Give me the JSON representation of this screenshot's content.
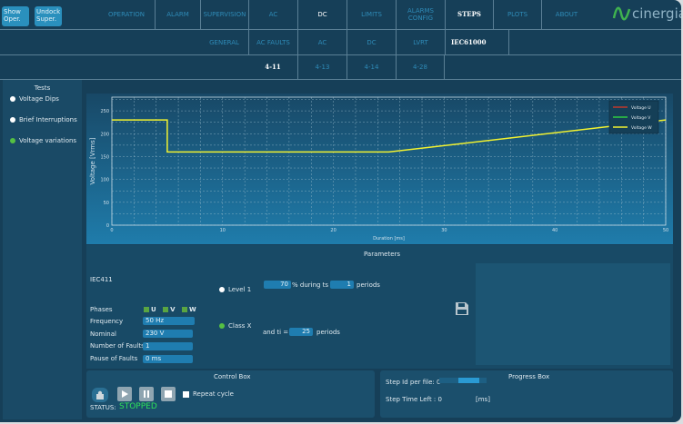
{
  "top_buttons": [
    {
      "label": "Show Oper."
    },
    {
      "label": "Undock Super."
    }
  ],
  "nav1": [
    "OPERATION",
    "ALARM",
    "SUPERVISION",
    "AC",
    "DC",
    "LIMITS",
    "ALARMS CONFIG",
    "STEPS",
    "PLOTS",
    "ABOUT"
  ],
  "nav1_active": "STEPS",
  "nav2": [
    "GENERAL",
    "AC FAULTS",
    "AC",
    "DC",
    "LVRT",
    "IEC61000"
  ],
  "nav3": [
    "4-11",
    "4-13",
    "4-14",
    "4-28"
  ],
  "logo": "cinergia",
  "sidebar": {
    "title": "Tests",
    "items": [
      {
        "label": "Voltage Dips",
        "color": "#ffffff"
      },
      {
        "label": "Brief Interruptions",
        "color": "#ffffff"
      },
      {
        "label": "Voltage variations",
        "color": "#55c043"
      }
    ]
  },
  "chart_data": {
    "type": "line",
    "xlabel": "Duration [ms]",
    "ylabel": "Voltage [Vrms]",
    "xlim": [
      0,
      50
    ],
    "ylim": [
      0,
      280
    ],
    "xticks": [
      0,
      10,
      20,
      30,
      40,
      50
    ],
    "yticks": [
      0,
      50,
      100,
      150,
      200,
      250
    ],
    "grid": true,
    "legend_placement": "top-right",
    "series": [
      {
        "name": "Voltage U",
        "color": "#c0392b",
        "x": [],
        "y": []
      },
      {
        "name": "Voltage V",
        "color": "#2ecc40",
        "x": [],
        "y": []
      },
      {
        "name": "Voltage W",
        "color": "#f2f230",
        "x": [
          0,
          5,
          5,
          25,
          50
        ],
        "y": [
          230,
          230,
          160,
          160,
          230
        ]
      }
    ]
  },
  "params": {
    "title": "Parameters",
    "test_id": "IEC411",
    "phases_label": "Phases",
    "phases": [
      "U",
      "V",
      "W"
    ],
    "frequency_label": "Frequency",
    "frequency": "50 Hz",
    "nominal_label": "Nominal",
    "nominal": "230 V",
    "faults_label": "Number of Faults",
    "faults": "1",
    "pause_label": "Pause of Faults",
    "pause": "0 ms",
    "level_label": "Level 1",
    "class_label": "Class X",
    "percent": "70",
    "during_text": "% during ts =",
    "ts": "1",
    "periods": "periods",
    "ti_text": "and ti =",
    "ti": "25"
  },
  "control": {
    "title": "Control Box",
    "repeat": "Repeat cycle",
    "status_label": "STATUS:",
    "status": "STOPPED",
    "status_color": "#2ee05a"
  },
  "progress": {
    "title": "Progress Box",
    "step_id": "Step Id per file: 0",
    "time_left": "Step Time Left : 0",
    "unit": "[ms]",
    "fill": 0.6
  }
}
